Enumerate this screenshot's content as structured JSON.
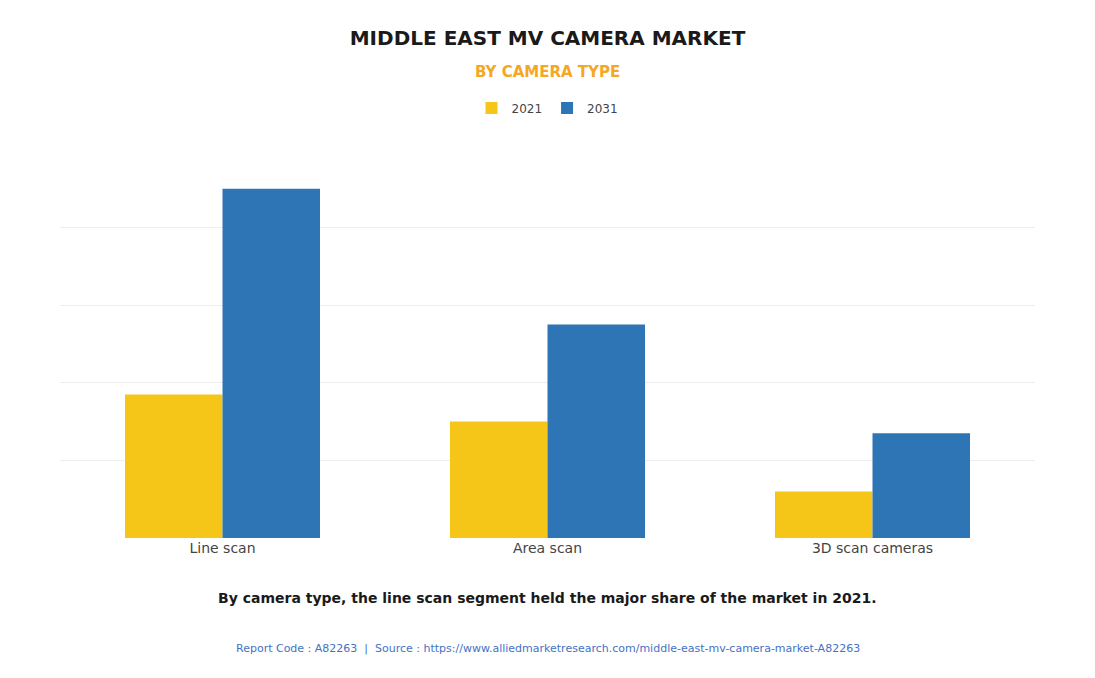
{
  "chart_data": {
    "type": "bar",
    "title": "MIDDLE EAST MV CAMERA MARKET",
    "subtitle": "BY CAMERA TYPE",
    "categories": [
      "Line scan",
      "Area scan",
      "3D scan cameras"
    ],
    "series": [
      {
        "name": "2021",
        "color": "#F5C518",
        "values": [
          37,
          30,
          12
        ]
      },
      {
        "name": "2031",
        "color": "#2E75B6",
        "values": [
          90,
          55,
          27
        ]
      }
    ],
    "ylim": [
      0,
      100
    ],
    "yticks": [
      0,
      20,
      40,
      60,
      80,
      100
    ],
    "grid": true,
    "legend": "top",
    "tick_labels": "x",
    "annotation": "By camera type, the line scan segment held the major share of the market in 2021.",
    "footer": "Report Code : A82263  |  Source : https://www.alliedmarketresearch.com/middle-east-mv-camera-market-A82263"
  }
}
